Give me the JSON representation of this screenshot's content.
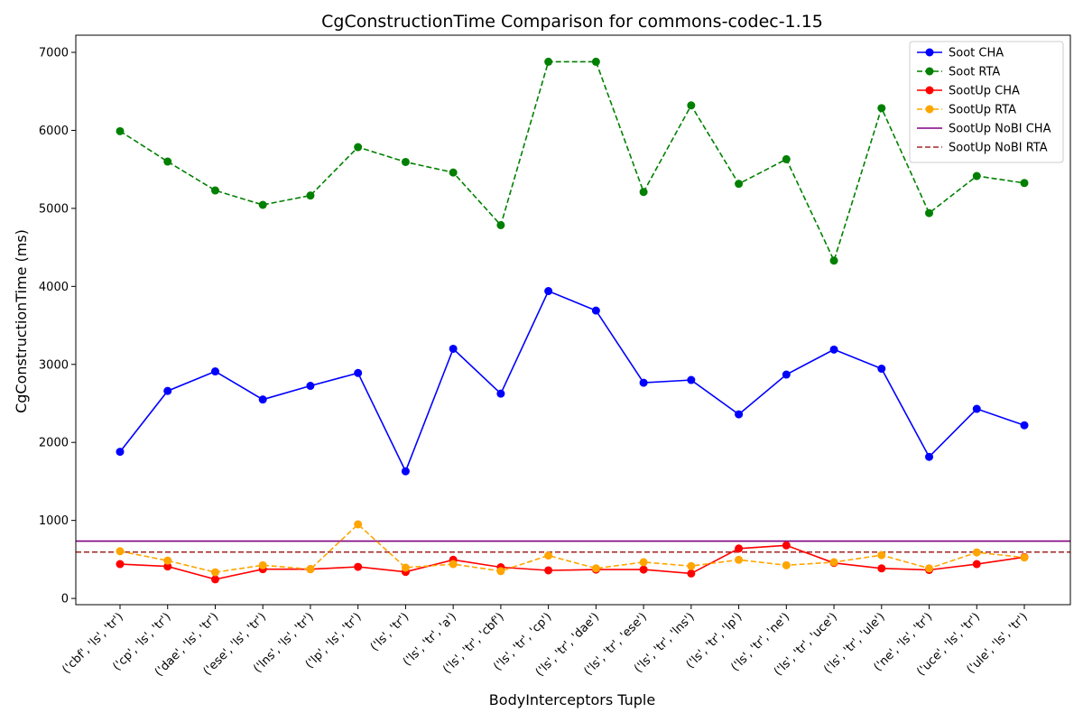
{
  "chart_data": {
    "type": "line",
    "title": "CgConstructionTime Comparison for commons-codec-1.15",
    "xlabel": "BodyInterceptors Tuple",
    "ylabel": "CgConstructionTime (ms)",
    "ylim": [
      -80,
      7220
    ],
    "yticks": [
      0,
      1000,
      2000,
      3000,
      4000,
      5000,
      6000,
      7000
    ],
    "grid": false,
    "legend_position": "top-right",
    "categories": [
      "('cbf', 'ls', 'tr')",
      "('cp', 'ls', 'tr')",
      "('dae', 'ls', 'tr')",
      "('ese', 'ls', 'tr')",
      "('lns', 'ls', 'tr')",
      "('lp', 'ls', 'tr')",
      "('ls', 'tr')",
      "('ls', 'tr', 'a')",
      "('ls', 'tr', 'cbf')",
      "('ls', 'tr', 'cp')",
      "('ls', 'tr', 'dae')",
      "('ls', 'tr', 'ese')",
      "('ls', 'tr', 'lns')",
      "('ls', 'tr', 'lp')",
      "('ls', 'tr', 'ne')",
      "('ls', 'tr', 'uce')",
      "('ls', 'tr', 'ule')",
      "('ne', 'ls', 'tr')",
      "('uce', 'ls', 'tr')",
      "('ule', 'ls', 'tr')"
    ],
    "series": [
      {
        "name": "Soot CHA",
        "color": "#0000ff",
        "style": "solid",
        "marker": "circle",
        "values": [
          1880,
          2660,
          2910,
          2550,
          2725,
          2890,
          1630,
          3200,
          2625,
          3940,
          3690,
          2765,
          2800,
          2360,
          2870,
          3190,
          2945,
          1815,
          2430,
          2220
        ]
      },
      {
        "name": "Soot RTA",
        "color": "#008000",
        "style": "dashed",
        "marker": "circle",
        "values": [
          5990,
          5600,
          5230,
          5045,
          5165,
          5785,
          5595,
          5460,
          4785,
          6880,
          6880,
          5210,
          6320,
          5315,
          5630,
          4330,
          6285,
          4940,
          5415,
          5325
        ]
      },
      {
        "name": "SootUp CHA",
        "color": "#ff0000",
        "style": "solid",
        "marker": "circle",
        "values": [
          440,
          410,
          245,
          375,
          375,
          405,
          340,
          495,
          400,
          360,
          370,
          370,
          320,
          640,
          680,
          455,
          385,
          365,
          440,
          530
        ]
      },
      {
        "name": "SootUp RTA",
        "color": "#ffa500",
        "style": "dashed",
        "marker": "circle",
        "values": [
          605,
          485,
          335,
          425,
          375,
          950,
          395,
          440,
          350,
          550,
          385,
          465,
          415,
          495,
          425,
          465,
          555,
          385,
          590,
          525
        ]
      }
    ],
    "reference_lines": [
      {
        "name": "SootUp NoBI CHA",
        "color": "#800080",
        "style": "solid",
        "value": 735
      },
      {
        "name": "SootUp NoBI RTA",
        "color": "#a52a2a",
        "style": "dashed",
        "value": 595
      }
    ]
  }
}
